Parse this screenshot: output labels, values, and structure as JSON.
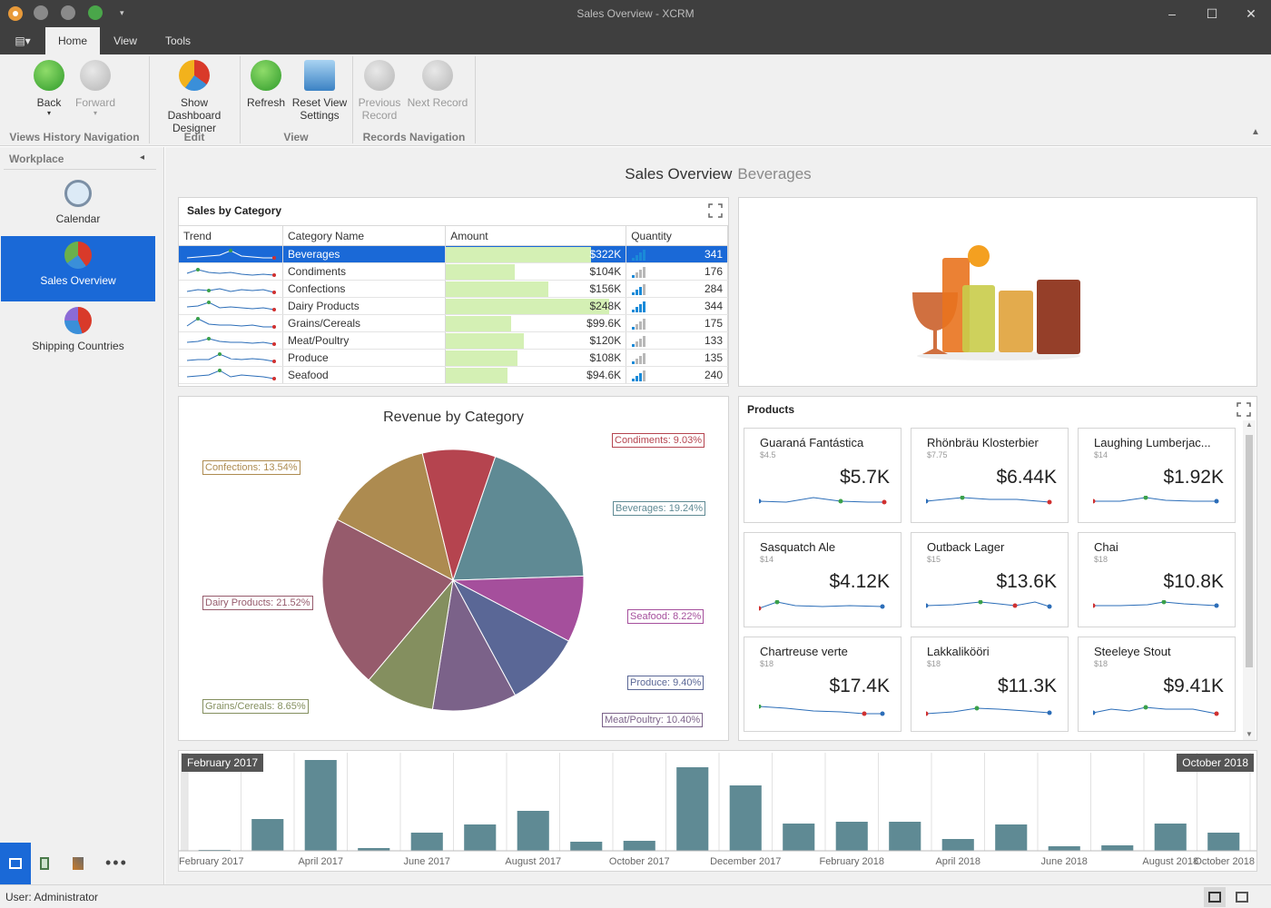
{
  "window": {
    "title": "Sales Overview - XCRM"
  },
  "ribbon_tabs": [
    "Home",
    "View",
    "Tools"
  ],
  "ribbon": {
    "back": "Back",
    "forward": "Forward",
    "show_dashboard_designer_1": "Show Dashboard",
    "show_dashboard_designer_2": "Designer",
    "refresh": "Refresh",
    "reset_view_1": "Reset View",
    "reset_view_2": "Settings",
    "previous_record_1": "Previous",
    "previous_record_2": "Record",
    "next_record": "Next Record",
    "groups": {
      "views_history": "Views History Navigation",
      "edit": "Edit",
      "view": "View",
      "records": "Records Navigation"
    }
  },
  "sidebar": {
    "header": "Workplace",
    "items": [
      {
        "label": "Calendar",
        "icon": "alarm-clock-icon"
      },
      {
        "label": "Sales Overview",
        "icon": "sales-pie-icon"
      },
      {
        "label": "Shipping Countries",
        "icon": "shipping-icon"
      }
    ]
  },
  "dashboard": {
    "title": "Sales Overview",
    "subtitle": "Beverages"
  },
  "sales_grid": {
    "title": "Sales by Category",
    "columns": [
      "Trend",
      "Category Name",
      "Amount",
      "Quantity"
    ],
    "rows": [
      {
        "name": "Beverages",
        "amount": "$322K",
        "amount_frac": 0.89,
        "qty": "341",
        "qty_level": 4
      },
      {
        "name": "Condiments",
        "amount": "$104K",
        "amount_frac": 0.42,
        "qty": "176",
        "qty_level": 1
      },
      {
        "name": "Confections",
        "amount": "$156K",
        "amount_frac": 0.63,
        "qty": "284",
        "qty_level": 3
      },
      {
        "name": "Dairy Products",
        "amount": "$248K",
        "amount_frac": 1.0,
        "qty": "344",
        "qty_level": 4
      },
      {
        "name": "Grains/Cereals",
        "amount": "$99.6K",
        "amount_frac": 0.4,
        "qty": "175",
        "qty_level": 1
      },
      {
        "name": "Meat/Poultry",
        "amount": "$120K",
        "amount_frac": 0.48,
        "qty": "133",
        "qty_level": 1
      },
      {
        "name": "Produce",
        "amount": "$108K",
        "amount_frac": 0.44,
        "qty": "135",
        "qty_level": 1
      },
      {
        "name": "Seafood",
        "amount": "$94.6K",
        "amount_frac": 0.38,
        "qty": "240",
        "qty_level": 3
      }
    ]
  },
  "chart_data": [
    {
      "type": "pie",
      "title": "Revenue by Category",
      "slices": [
        {
          "label": "Beverages: 19.24%",
          "name": "Beverages",
          "value": 19.24,
          "color": "#5f8a94"
        },
        {
          "label": "Seafood: 8.22%",
          "name": "Seafood",
          "value": 8.22,
          "color": "#a54f9c"
        },
        {
          "label": "Produce: 9.40%",
          "name": "Produce",
          "value": 9.4,
          "color": "#5a6796"
        },
        {
          "label": "Meat/Poultry: 10.40%",
          "name": "Meat/Poultry",
          "value": 10.4,
          "color": "#7b6289"
        },
        {
          "label": "Grains/Cereals: 8.65%",
          "name": "Grains/Cereals",
          "value": 8.65,
          "color": "#848f5f"
        },
        {
          "label": "Dairy Products: 21.52%",
          "name": "Dairy Products",
          "value": 21.52,
          "color": "#965b6c"
        },
        {
          "label": "Confections: 13.54%",
          "name": "Confections",
          "value": 13.54,
          "color": "#ad8b50"
        },
        {
          "label": "Condiments: 9.03%",
          "name": "Condiments",
          "value": 9.03,
          "color": "#b5444f"
        }
      ]
    },
    {
      "type": "bar",
      "title": "",
      "range_start_label": "February 2017",
      "range_end_label": "October 2018",
      "tick_labels": [
        "February 2017",
        "April 2017",
        "June 2017",
        "August 2017",
        "October 2017",
        "December 2017",
        "February 2018",
        "April 2018",
        "June 2018",
        "August 2018",
        "October 2018"
      ],
      "values": [
        1,
        35,
        100,
        3,
        20,
        29,
        44,
        10,
        11,
        92,
        72,
        30,
        32,
        32,
        13,
        29,
        5,
        6,
        30,
        20
      ]
    }
  ],
  "products": {
    "title": "Products",
    "cards": [
      {
        "name": "Guaraná Fantástica",
        "price": "$4.5",
        "value": "$5.7K"
      },
      {
        "name": "Rhönbräu Klosterbier",
        "price": "$7.75",
        "value": "$6.44K"
      },
      {
        "name": "Laughing  Lumberjac...",
        "price": "$14",
        "value": "$1.92K"
      },
      {
        "name": "Sasquatch Ale",
        "price": "$14",
        "value": "$4.12K"
      },
      {
        "name": "Outback Lager",
        "price": "$15",
        "value": "$13.6K"
      },
      {
        "name": "Chai",
        "price": "$18",
        "value": "$10.8K"
      },
      {
        "name": "Chartreuse verte",
        "price": "$18",
        "value": "$17.4K"
      },
      {
        "name": "Lakkalikööri",
        "price": "$18",
        "value": "$11.3K"
      },
      {
        "name": "Steeleye Stout",
        "price": "$18",
        "value": "$9.41K"
      }
    ]
  },
  "status": {
    "user": "User: Administrator"
  }
}
